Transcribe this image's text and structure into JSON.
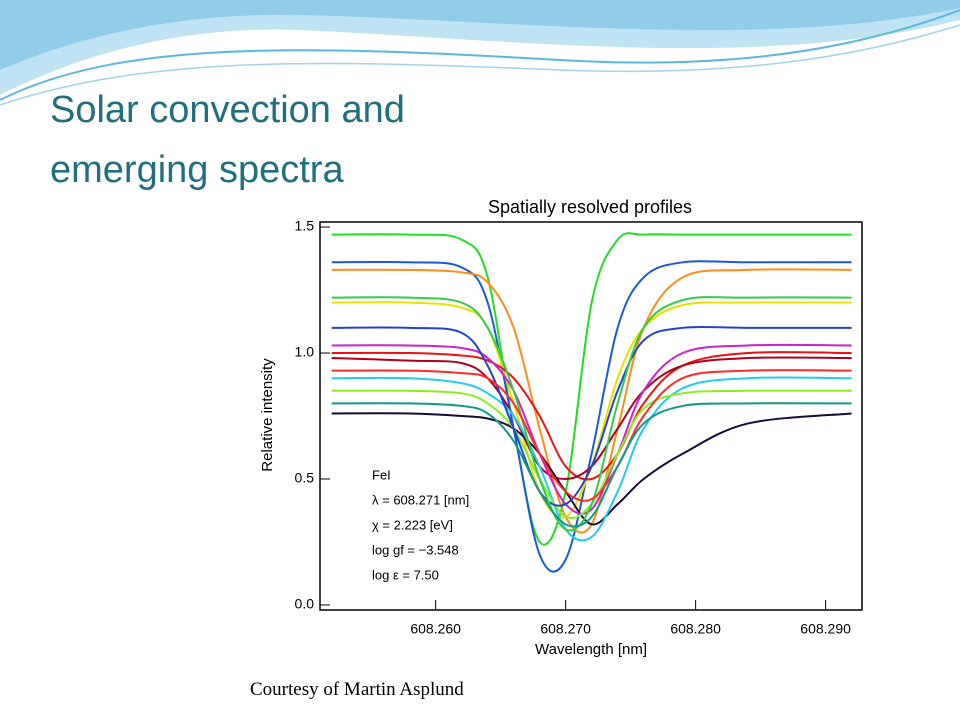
{
  "slide": {
    "title": "Solar convection and emerging spectra",
    "caption": "Courtesy of Martin Asplund"
  },
  "chart_data": {
    "type": "line",
    "title": "Spatially resolved profiles",
    "x_label": "Wavelength [nm]",
    "y_label": "Relative intensity",
    "annotations": [
      "FeI",
      "λ = 608.271 [nm]",
      "χ =  2.223 [eV]",
      "log gf = −3.548",
      "log ε =  7.50"
    ],
    "x": [
      608.252,
      608.258,
      608.262,
      608.264,
      608.266,
      608.268,
      608.27,
      608.272,
      608.274,
      608.276,
      608.279,
      608.284,
      608.292
    ],
    "xlim": [
      608.2511,
      608.2928
    ],
    "xticks": [
      {
        "value": 608.26,
        "label": "608.260"
      },
      {
        "value": 608.27,
        "label": "608.270"
      },
      {
        "value": 608.28,
        "label": "608.280"
      },
      {
        "value": 608.29,
        "label": "608.290"
      }
    ],
    "ylim": [
      -0.02,
      1.52
    ],
    "yticks": [
      {
        "value": 0,
        "label": "0.0"
      },
      {
        "value": 0.5,
        "label": "0.5"
      },
      {
        "value": 1,
        "label": "1.0"
      },
      {
        "value": 1.5,
        "label": "1.5"
      }
    ],
    "series": [
      {
        "color": "#22dd22",
        "values": [
          1.47,
          1.47,
          1.45,
          1.3,
          0.7,
          0.25,
          0.45,
          1.2,
          1.45,
          1.47,
          1.47,
          1.47,
          1.47
        ]
      },
      {
        "color": "#1a5ad8",
        "values": [
          1.36,
          1.36,
          1.34,
          1.2,
          0.7,
          0.2,
          0.18,
          0.6,
          1.1,
          1.3,
          1.36,
          1.36,
          1.36
        ]
      },
      {
        "color": "#ff8c1a",
        "values": [
          1.33,
          1.33,
          1.32,
          1.28,
          1.1,
          0.7,
          0.35,
          0.32,
          0.7,
          1.1,
          1.3,
          1.33,
          1.33
        ]
      },
      {
        "color": "#e8e000",
        "values": [
          1.2,
          1.2,
          1.18,
          1.1,
          0.8,
          0.45,
          0.35,
          0.55,
          0.9,
          1.1,
          1.19,
          1.2,
          1.2
        ]
      },
      {
        "color": "#ee1111",
        "values": [
          1.0,
          1.0,
          0.99,
          0.97,
          0.9,
          0.75,
          0.55,
          0.5,
          0.6,
          0.8,
          0.95,
          1.0,
          1.0
        ]
      },
      {
        "color": "#b00020",
        "values": [
          0.98,
          0.97,
          0.96,
          0.9,
          0.75,
          0.55,
          0.5,
          0.55,
          0.7,
          0.85,
          0.95,
          0.98,
          0.98
        ]
      },
      {
        "color": "#1a0a3a",
        "values": [
          0.76,
          0.76,
          0.75,
          0.74,
          0.7,
          0.6,
          0.45,
          0.32,
          0.4,
          0.5,
          0.6,
          0.72,
          0.76
        ]
      },
      {
        "color": "#22ccee",
        "values": [
          0.9,
          0.9,
          0.88,
          0.84,
          0.75,
          0.55,
          0.3,
          0.27,
          0.45,
          0.7,
          0.86,
          0.9,
          0.9
        ]
      },
      {
        "color": "#cc22cc",
        "values": [
          1.03,
          1.03,
          1.02,
          0.98,
          0.85,
          0.6,
          0.4,
          0.38,
          0.6,
          0.85,
          1.0,
          1.03,
          1.03
        ]
      },
      {
        "color": "#88ee22",
        "values": [
          0.85,
          0.85,
          0.84,
          0.8,
          0.7,
          0.5,
          0.35,
          0.4,
          0.6,
          0.78,
          0.84,
          0.85,
          0.85
        ]
      },
      {
        "color": "#2244cc",
        "values": [
          1.1,
          1.1,
          1.08,
          0.95,
          0.7,
          0.45,
          0.4,
          0.55,
          0.85,
          1.05,
          1.1,
          1.1,
          1.1
        ]
      },
      {
        "color": "#33cc44",
        "values": [
          1.22,
          1.22,
          1.2,
          1.1,
          0.85,
          0.5,
          0.3,
          0.4,
          0.8,
          1.1,
          1.21,
          1.22,
          1.22
        ]
      },
      {
        "color": "#ff2a2a",
        "values": [
          0.93,
          0.93,
          0.92,
          0.9,
          0.8,
          0.6,
          0.45,
          0.42,
          0.55,
          0.75,
          0.9,
          0.93,
          0.93
        ]
      },
      {
        "color": "#119988",
        "values": [
          0.8,
          0.8,
          0.79,
          0.76,
          0.65,
          0.45,
          0.32,
          0.35,
          0.55,
          0.72,
          0.79,
          0.8,
          0.8
        ]
      }
    ]
  }
}
